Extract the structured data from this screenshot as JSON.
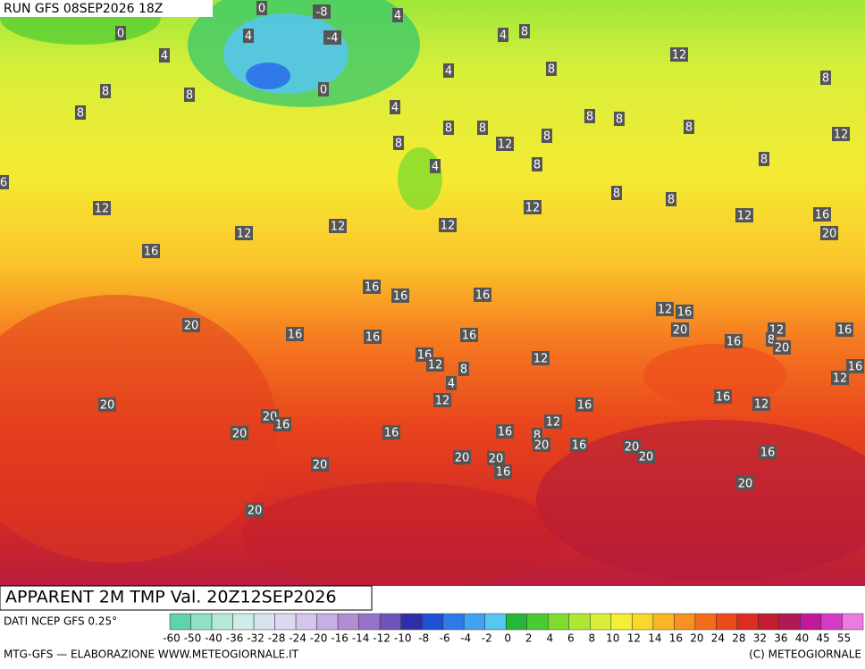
{
  "header": {
    "run": "RUN GFS 08SEP2026 18Z"
  },
  "map": {
    "title": "APPARENT 2M TMP Val. 20Z12SEP2026",
    "contour_labels": [
      0,
      -8,
      4,
      0,
      4,
      -4,
      4,
      8,
      4,
      12,
      8,
      4,
      8,
      8,
      8,
      0,
      4,
      8,
      8,
      8,
      8,
      8,
      8,
      12,
      8,
      8,
      12,
      8,
      4,
      8,
      6,
      8,
      8,
      12,
      12,
      12,
      16,
      12,
      12,
      12,
      20,
      16,
      16,
      16,
      16,
      12,
      16,
      20,
      20,
      16,
      16,
      16,
      12,
      16,
      8,
      16,
      20,
      16,
      12,
      8,
      12,
      16,
      12,
      4,
      16,
      12,
      12,
      20,
      16,
      20,
      16,
      12,
      20,
      16,
      16,
      8,
      20,
      16,
      20,
      20,
      16,
      20,
      20,
      20,
      16,
      20,
      20
    ]
  },
  "legend": {
    "source": "DATI NCEP GFS 0.25°",
    "ticks": [
      -60,
      -50,
      -40,
      -36,
      -32,
      -28,
      -24,
      -20,
      -16,
      -14,
      -12,
      -10,
      -8,
      -6,
      -4,
      -2,
      0,
      2,
      4,
      6,
      8,
      10,
      12,
      14,
      16,
      20,
      24,
      28,
      32,
      36,
      40,
      45,
      55
    ],
    "colors": [
      "#5fd3b0",
      "#8fe0c5",
      "#b5eadb",
      "#cdeee8",
      "#d5e4ee",
      "#dcd9f0",
      "#d6c6ec",
      "#c7aee3",
      "#b08ed6",
      "#9673c8",
      "#6e54b8",
      "#2d2fa8",
      "#1f4fd2",
      "#2f7ae8",
      "#3fa3f0",
      "#56c6f2",
      "#28b53a",
      "#4bcb33",
      "#7fdc2e",
      "#b2e634",
      "#dbef3a",
      "#f3ef36",
      "#f9d82c",
      "#fbb626",
      "#f99022",
      "#f46d1d",
      "#ec4a1b",
      "#dd2c22",
      "#c21d2e",
      "#b01a52",
      "#c2189a",
      "#d53bc5",
      "#ea7be0"
    ]
  },
  "footer": {
    "left": "MTG-GFS — ELABORAZIONE WWW.METEOGIORNALE.IT",
    "right": "(C) METEOGIORNALE"
  }
}
